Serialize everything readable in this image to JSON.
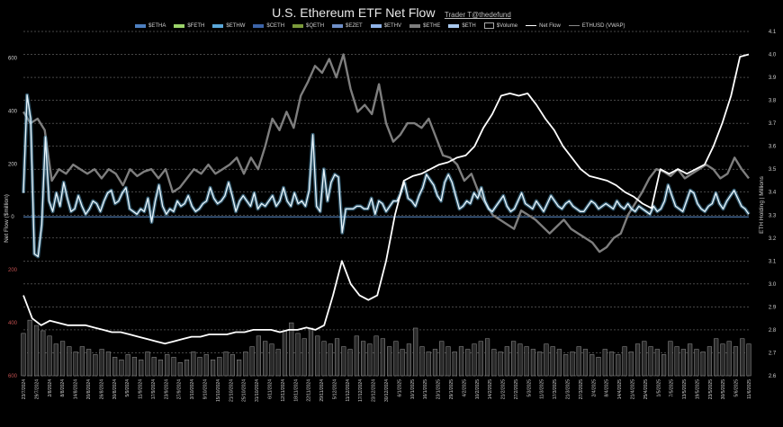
{
  "header": {
    "title": "U.S. Ethereum ETF Net Flow",
    "credit": "Trader T@thedefund"
  },
  "legend": [
    {
      "label": "$ETHA",
      "color": "#4d7fc0",
      "kind": "bar"
    },
    {
      "label": "$FETH",
      "color": "#9bd36a",
      "kind": "bar"
    },
    {
      "label": "$ETHW",
      "color": "#5aa7d8",
      "kind": "bar"
    },
    {
      "label": "$CETH",
      "color": "#3c64a8",
      "kind": "bar"
    },
    {
      "label": "$QETH",
      "color": "#7a9a3a",
      "kind": "bar"
    },
    {
      "label": "$EZET",
      "color": "#6f8fc8",
      "kind": "bar"
    },
    {
      "label": "$ETHV",
      "color": "#8fb3e8",
      "kind": "bar"
    },
    {
      "label": "$ETHE",
      "color": "#7d7d7d",
      "kind": "bar"
    },
    {
      "label": "$ETH",
      "color": "#a9c9ee",
      "kind": "bar"
    },
    {
      "label": "$Volume",
      "color": "#aaaaaa",
      "kind": "box"
    },
    {
      "label": "Net Flow",
      "color": "#ffffff",
      "kind": "line"
    },
    {
      "label": "ETHUSD (VWAP)",
      "color": "#888888",
      "kind": "line"
    }
  ],
  "chart_data": {
    "type": "bar",
    "title": "U.S. Ethereum ETF Net Flow",
    "ylabel_left": "Net Flow ($million)",
    "ylabel_right": "ETH Holding | Millions",
    "left_axis": {
      "ylim": [
        -600,
        700
      ],
      "ticks": [
        600,
        400,
        200,
        0,
        -200,
        -400,
        -600
      ],
      "tick_labels": [
        "600",
        "400",
        "200",
        "0",
        "200",
        "400",
        "600"
      ]
    },
    "right_axis": {
      "ylim": [
        2.6,
        4.1
      ],
      "ticks": [
        2.6,
        2.7,
        2.8,
        2.9,
        3.0,
        3.1,
        3.2,
        3.3,
        3.4,
        3.5,
        3.6,
        3.7,
        3.8,
        3.9,
        4.0,
        4.1
      ],
      "tick_labels": [
        "2.6",
        "2.7",
        "2.8",
        "2.9",
        "3.0",
        "3.1",
        "3.2",
        "3.3",
        "3.4",
        "3.5",
        "3.6",
        "3.7",
        "3.8",
        "3.9",
        "4.0",
        "4.1"
      ]
    },
    "x_labels": [
      "23/7/2024",
      "29/7/2024",
      "2/8/2024",
      "8/8/2024",
      "14/8/2024",
      "20/8/2024",
      "26/8/2024",
      "30/8/2024",
      "5/9/2024",
      "11/9/2024",
      "17/9/2024",
      "23/9/2024",
      "27/9/2024",
      "3/10/2024",
      "9/10/2024",
      "15/10/2024",
      "21/10/2024",
      "25/10/2024",
      "31/10/2024",
      "6/11/2024",
      "12/11/2024",
      "18/11/2024",
      "22/11/2024",
      "29/11/2024",
      "5/12/2024",
      "11/12/2024",
      "17/12/2024",
      "23/12/2024",
      "30/12/2024",
      "6/1/2025",
      "10/1/2025",
      "16/1/2025",
      "23/1/2025",
      "29/1/2025",
      "4/2/2025",
      "10/2/2025",
      "14/2/2025",
      "21/2/2025",
      "27/2/2025",
      "5/3/2025",
      "11/3/2025",
      "17/3/2025",
      "21/3/2025",
      "27/3/2025",
      "2/4/2025",
      "8/4/2025",
      "14/4/2025",
      "21/4/2025",
      "25/4/2025",
      "1/5/2025",
      "7/5/2025",
      "13/5/2025",
      "19/5/2025",
      "23/5/2025",
      "30/5/2025",
      "5/6/2025",
      "11/6/2025"
    ],
    "series": [
      {
        "name": "Net Flow",
        "axis": "left",
        "kind": "line",
        "values": [
          90,
          460,
          370,
          -140,
          -150,
          -30,
          300,
          60,
          20,
          90,
          40,
          130,
          70,
          20,
          30,
          80,
          40,
          10,
          30,
          60,
          50,
          20,
          60,
          90,
          100,
          50,
          60,
          90,
          110,
          30,
          20,
          10,
          30,
          20,
          70,
          -20,
          60,
          120,
          40,
          10,
          30,
          20,
          60,
          40,
          50,
          80,
          40,
          20,
          30,
          50,
          60,
          110,
          70,
          50,
          60,
          80,
          130,
          80,
          20,
          60,
          80,
          60,
          40,
          90,
          30,
          50,
          40,
          60,
          80,
          40,
          60,
          110,
          60,
          40,
          90,
          50,
          60,
          40,
          100,
          310,
          40,
          20,
          180,
          60,
          130,
          160,
          150,
          -60,
          30,
          30,
          30,
          40,
          40,
          30,
          30,
          70,
          10,
          60,
          50,
          20,
          40,
          60,
          60,
          90,
          130,
          70,
          60,
          40,
          80,
          110,
          160,
          140,
          120,
          80,
          60,
          130,
          160,
          130,
          80,
          30,
          40,
          60,
          50,
          90,
          70,
          110,
          60,
          30,
          20,
          40,
          60,
          80,
          40,
          20,
          30,
          60,
          90,
          50,
          40,
          30,
          60,
          40,
          20,
          50,
          80,
          60,
          40,
          30,
          50,
          60,
          40,
          30,
          20,
          20,
          40,
          60,
          50,
          30,
          40,
          50,
          40,
          30,
          60,
          40,
          30,
          50,
          30,
          20,
          40,
          30,
          20,
          10,
          40,
          20,
          30,
          60,
          120,
          80,
          40,
          30,
          20,
          60,
          100,
          90,
          50,
          30,
          20,
          40,
          50,
          90,
          50,
          30,
          60,
          80,
          100,
          70,
          40,
          30,
          10
        ]
      },
      {
        "name": "ETHUSD (VWAP)",
        "axis": "right",
        "kind": "line",
        "values": [
          3.75,
          3.7,
          3.72,
          3.67,
          3.45,
          3.5,
          3.48,
          3.52,
          3.5,
          3.48,
          3.5,
          3.46,
          3.5,
          3.48,
          3.43,
          3.5,
          3.47,
          3.49,
          3.5,
          3.46,
          3.5,
          3.4,
          3.42,
          3.46,
          3.5,
          3.48,
          3.52,
          3.48,
          3.5,
          3.52,
          3.55,
          3.48,
          3.55,
          3.5,
          3.6,
          3.72,
          3.67,
          3.75,
          3.68,
          3.82,
          3.88,
          3.95,
          3.92,
          3.98,
          3.9,
          4.0,
          3.85,
          3.75,
          3.78,
          3.74,
          3.87,
          3.7,
          3.62,
          3.65,
          3.7,
          3.7,
          3.68,
          3.72,
          3.64,
          3.56,
          3.55,
          3.52,
          3.45,
          3.48,
          3.4,
          3.35,
          3.3,
          3.28,
          3.26,
          3.24,
          3.32,
          3.3,
          3.28,
          3.25,
          3.22,
          3.25,
          3.28,
          3.24,
          3.22,
          3.2,
          3.18,
          3.14,
          3.16,
          3.2,
          3.22,
          3.3,
          3.35,
          3.4,
          3.46,
          3.5,
          3.49,
          3.47,
          3.5,
          3.46,
          3.48,
          3.5,
          3.52,
          3.5,
          3.46,
          3.48,
          3.55,
          3.5,
          3.46
        ]
      },
      {
        "name": "ETH Holding",
        "axis": "right",
        "kind": "line",
        "values": [
          2.95,
          2.85,
          2.82,
          2.84,
          2.83,
          2.82,
          2.82,
          2.82,
          2.81,
          2.8,
          2.79,
          2.79,
          2.78,
          2.77,
          2.76,
          2.75,
          2.74,
          2.75,
          2.76,
          2.77,
          2.77,
          2.78,
          2.78,
          2.78,
          2.79,
          2.79,
          2.8,
          2.8,
          2.8,
          2.79,
          2.8,
          2.8,
          2.81,
          2.8,
          2.82,
          2.95,
          3.1,
          3.0,
          2.95,
          2.93,
          2.95,
          3.1,
          3.3,
          3.45,
          3.47,
          3.48,
          3.5,
          3.52,
          3.53,
          3.55,
          3.56,
          3.6,
          3.68,
          3.74,
          3.82,
          3.83,
          3.82,
          3.83,
          3.78,
          3.72,
          3.67,
          3.6,
          3.55,
          3.5,
          3.47,
          3.46,
          3.45,
          3.43,
          3.4,
          3.38,
          3.35,
          3.33,
          3.5,
          3.48,
          3.5,
          3.48,
          3.5,
          3.52,
          3.6,
          3.7,
          3.82,
          3.99,
          4.0
        ]
      },
      {
        "name": "$Volume",
        "axis": "left",
        "kind": "bar",
        "values": [
          160,
          210,
          190,
          170,
          150,
          120,
          130,
          110,
          90,
          110,
          100,
          80,
          100,
          90,
          70,
          60,
          80,
          70,
          60,
          90,
          70,
          60,
          80,
          70,
          50,
          60,
          90,
          70,
          80,
          60,
          70,
          90,
          80,
          60,
          90,
          110,
          150,
          130,
          120,
          100,
          170,
          200,
          160,
          140,
          180,
          150,
          130,
          120,
          140,
          110,
          100,
          150,
          130,
          120,
          150,
          140,
          110,
          130,
          100,
          120,
          180,
          110,
          90,
          100,
          130,
          110,
          90,
          110,
          100,
          120,
          130,
          140,
          100,
          90,
          110,
          130,
          120,
          110,
          100,
          90,
          120,
          110,
          100,
          80,
          90,
          110,
          100,
          80,
          70,
          100,
          90,
          80,
          110,
          90,
          120,
          130,
          110,
          100,
          80,
          130,
          110,
          100,
          120,
          100,
          90,
          110,
          140,
          120,
          130,
          110,
          140,
          120
        ]
      }
    ]
  }
}
